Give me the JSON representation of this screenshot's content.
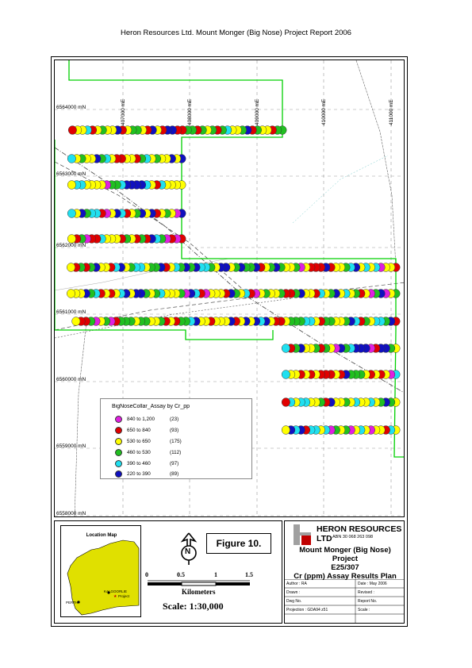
{
  "header": {
    "title": "Heron Resources Ltd.  Mount Monger (Big Nose) Project Report 2006"
  },
  "map": {
    "northings": [
      "6564000 mN",
      "6563000 mN",
      "6562000 mN",
      "6561000 mN",
      "6560000 mN",
      "6559000 mN",
      "6558000 mN"
    ],
    "eastings": [
      "407000 mE",
      "408000 mE",
      "409000 mE",
      "410000 mE",
      "411000 mE"
    ],
    "colors": {
      "magenta": "#e020e0",
      "red": "#e00000",
      "yellow": "#ffff00",
      "green": "#20c020",
      "cyan": "#20e0f0",
      "blue": "#1010c0",
      "tenement": "#00d000"
    }
  },
  "legend": {
    "title": "BigNoseCollar_Assay by Cr_pp",
    "items": [
      {
        "range": "840 to 1,200",
        "count": "(23)",
        "color": "#e020e0"
      },
      {
        "range": "650 to   840",
        "count": "(93)",
        "color": "#e00000"
      },
      {
        "range": "530 to   650",
        "count": "(175)",
        "color": "#ffff00"
      },
      {
        "range": "460 to   530",
        "count": "(112)",
        "color": "#20c020"
      },
      {
        "range": "390 to   460",
        "count": "(97)",
        "color": "#20e0f0"
      },
      {
        "range": "220 to   390",
        "count": "(89)",
        "color": "#1010c0"
      }
    ]
  },
  "location_map": {
    "title": "Location Map",
    "perth": "PERTH",
    "kalgoorlie": "KALGOORLIE",
    "project": "Project"
  },
  "figure": {
    "label": "Figure 10."
  },
  "north": {
    "label": "N"
  },
  "scale": {
    "ticks": [
      "0",
      "0.5",
      "1",
      "1.5"
    ],
    "unit": "Kilometers",
    "ratio": "Scale: 1:30,000"
  },
  "titleblock": {
    "company": "HERON RESOURCES LTD",
    "abn": "ABN 30 068 263 098",
    "project": "Mount Monger (Big Nose) Project",
    "tenement": "E25/307",
    "plan": "Cr (ppm) Assay Results Plan",
    "author": "Author : RA",
    "date": "Date : May 2006",
    "drawn": "Drawn :",
    "revised": "Revised :",
    "dwg": "Dwg No.",
    "report": "Report No.",
    "projection": "Projection : GDA94 z51",
    "scale": "Scale :"
  }
}
